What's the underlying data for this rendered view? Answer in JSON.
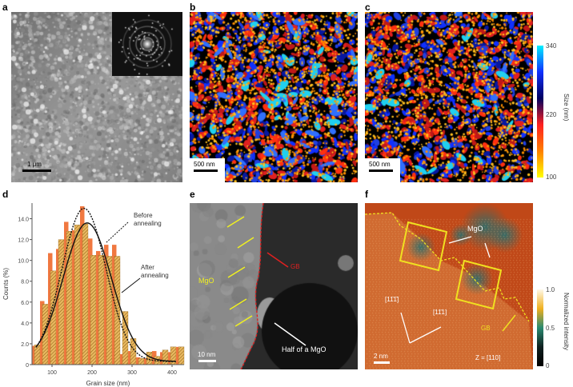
{
  "panels": {
    "a": {
      "label": "a",
      "scalebar": "1 μm"
    },
    "b": {
      "label": "b",
      "scalebar": "500 nm"
    },
    "c": {
      "label": "c",
      "scalebar": "500 nm"
    },
    "d": {
      "label": "d"
    },
    "e": {
      "label": "e",
      "scalebar": "10 nm",
      "mgo": "MgO",
      "gb": "GB",
      "half": "Half of a MgO"
    },
    "f": {
      "label": "f",
      "scalebar": "2 nm",
      "mgo": "MgO",
      "gb": "GB",
      "dir1": "[11̄1̄]",
      "dir2": "[11̄1]",
      "zone": "Z = [110]"
    }
  },
  "size_colorbar": {
    "title": "Size (nm)",
    "ticks": [
      "340",
      "220",
      "100"
    ],
    "colors": [
      "#00f0ff",
      "#1030ff",
      "#000060",
      "#ff2020",
      "#ff8000",
      "#ffff00"
    ]
  },
  "intensity_colorbar": {
    "title": "Normalized intensity",
    "ticks": [
      "1.0",
      "0.5",
      "0"
    ],
    "colors": [
      "#fff8e8",
      "#f0b020",
      "#2a8a70",
      "#102020",
      "#000000"
    ]
  },
  "chart_data": {
    "type": "bar",
    "xlabel": "Grain size (nm)",
    "ylabel": "Counts (%)",
    "xlim": [
      50,
      430
    ],
    "ylim": [
      0,
      15.5
    ],
    "xticks": [
      100,
      200,
      300,
      400
    ],
    "yticks": [
      "0",
      "2.0",
      "4.0",
      "6.0",
      "8.0",
      "10.0",
      "12.0",
      "14.0"
    ],
    "bin_centers": [
      60,
      80,
      100,
      120,
      140,
      160,
      180,
      200,
      220,
      240,
      260,
      280,
      300,
      320,
      340,
      360,
      380,
      400,
      420
    ],
    "series": [
      {
        "name": "Before annealing",
        "color": "#f07840",
        "values": [
          1.8,
          6.1,
          10.7,
          11.1,
          13.7,
          12.9,
          15.2,
          12.1,
          10.9,
          11.5,
          11.5,
          1.0,
          1.3,
          0.7,
          0.6,
          1.3,
          1.2,
          1.2,
          1.7
        ],
        "fit": "dotted"
      },
      {
        "name": "After annealing",
        "color": "#e0b050",
        "values": [
          1.9,
          5.8,
          9.0,
          12.0,
          12.8,
          13.4,
          13.5,
          10.5,
          10.5,
          10.4,
          10.4,
          5.1,
          2.5,
          0.6,
          1.2,
          0.8,
          1.4,
          1.7,
          1.7
        ],
        "fit": "solid"
      }
    ],
    "annotations": [
      "Before annealing",
      "After annealing"
    ]
  }
}
